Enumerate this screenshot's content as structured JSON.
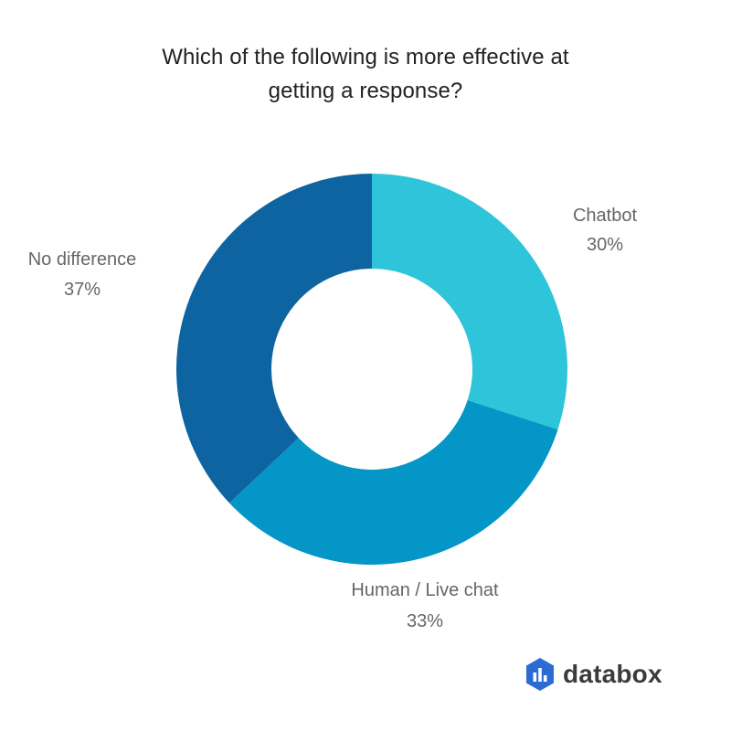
{
  "chart_data": {
    "type": "pie",
    "title_lines": [
      "Which of the following is more effective at",
      "getting a response?"
    ],
    "slices": [
      {
        "label": "Chatbot",
        "value": 30,
        "value_label": "30%",
        "color": "#2ec4d9"
      },
      {
        "label": "Human / Live chat",
        "value": 33,
        "value_label": "33%",
        "color": "#0496c6"
      },
      {
        "label": "No difference",
        "value": 37,
        "value_label": "37%",
        "color": "#0e64a0"
      }
    ],
    "donut": true
  },
  "brand": {
    "name": "databox",
    "icon": "databox-logo-icon",
    "color": "#2b6cd4"
  }
}
